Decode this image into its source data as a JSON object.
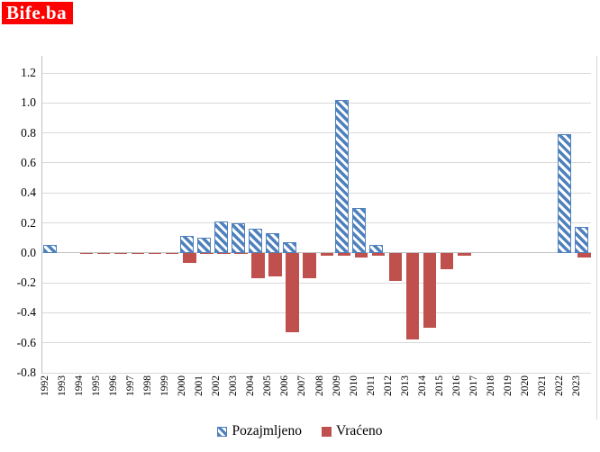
{
  "logo": {
    "text": "Bife.ba",
    "bg_color": "#FF0000",
    "text_color": "#FFFFFF"
  },
  "chart_data": {
    "type": "bar",
    "title": "",
    "xlabel": "",
    "ylabel": "",
    "categories": [
      "1992",
      "1993",
      "1994",
      "1995",
      "1996",
      "1997",
      "1998",
      "1999",
      "2000",
      "2001",
      "2002",
      "2003",
      "2004",
      "2005",
      "2006",
      "2007",
      "2008",
      "2009",
      "2010",
      "2011",
      "2012",
      "2013",
      "2014",
      "2015",
      "2016",
      "2017",
      "2018",
      "2019",
      "2020",
      "2021",
      "2022",
      "2023"
    ],
    "series": [
      {
        "name": "Pozajmljeno",
        "style": "diagonal-hatch",
        "color": "#4F81BD",
        "values": [
          0.05,
          0,
          0,
          0,
          0,
          0,
          0,
          0,
          0.11,
          0.1,
          0.21,
          0.2,
          0.16,
          0.13,
          0.07,
          0,
          0,
          1.02,
          0.3,
          0.05,
          0,
          0,
          0,
          0,
          0,
          0,
          0,
          0,
          0,
          0,
          0.79,
          0.17
        ]
      },
      {
        "name": "Vraćeno",
        "style": "solid",
        "color": "#C0504D",
        "values": [
          0,
          0,
          -0.01,
          -0.01,
          -0.01,
          -0.01,
          -0.01,
          -0.01,
          -0.07,
          -0.01,
          -0.01,
          -0.01,
          -0.17,
          -0.16,
          -0.53,
          -0.17,
          -0.02,
          -0.02,
          -0.03,
          -0.02,
          -0.19,
          -0.58,
          -0.5,
          -0.11,
          -0.02,
          0,
          0,
          0,
          0,
          0,
          0,
          -0.03
        ]
      }
    ],
    "ylim": [
      -0.8,
      1.2
    ],
    "yticks": [
      "1.2",
      "1.0",
      "0.8",
      "0.6",
      "0.4",
      "0.2",
      "0.0",
      "-0.2",
      "-0.4",
      "-0.6",
      "-0.8"
    ],
    "grid": true,
    "legend_position": "bottom",
    "gridline_color": "#D9D9D9",
    "background_color": "#FFFFFF"
  }
}
